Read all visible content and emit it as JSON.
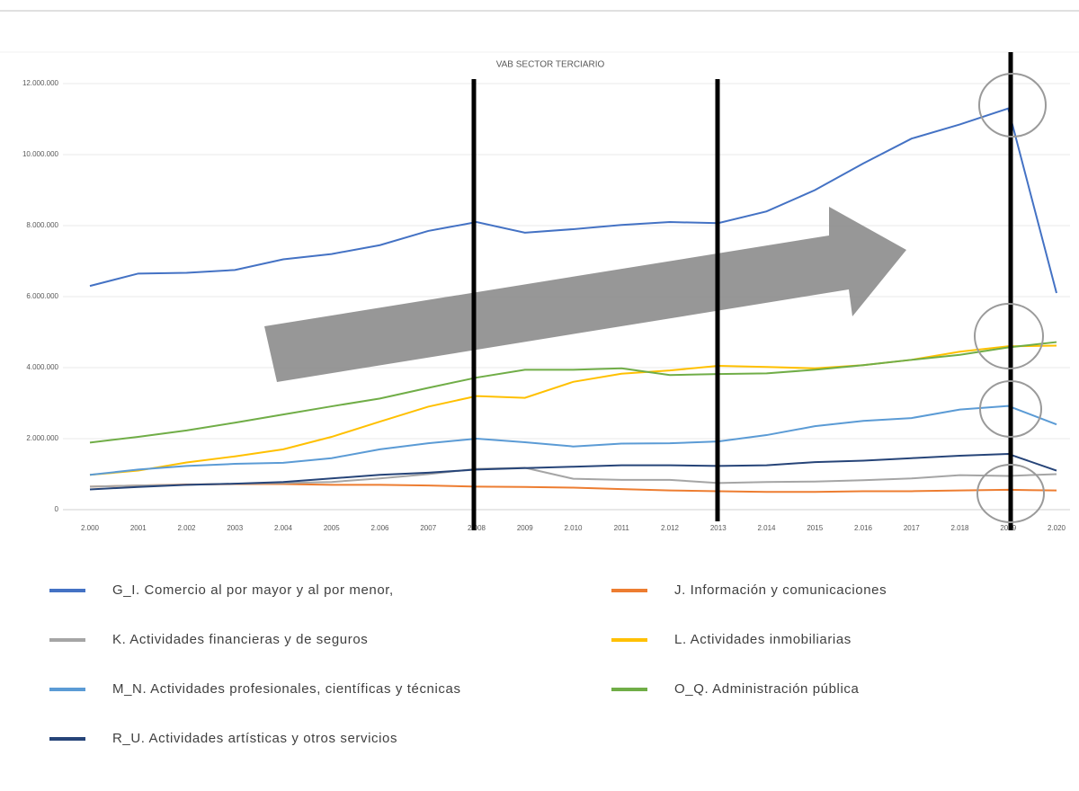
{
  "chart_data": {
    "type": "line",
    "title": "VAB SECTOR TERCIARIO",
    "categories": [
      "2.000",
      "2001",
      "2.002",
      "2003",
      "2.004",
      "2005",
      "2.006",
      "2007",
      "2.008",
      "2009",
      "2.010",
      "2011",
      "2.012",
      "2013",
      "2.014",
      "2015",
      "2.016",
      "2017",
      "2.018",
      "2019",
      "2.020"
    ],
    "ylim": [
      0,
      12000000
    ],
    "yticks": [
      0,
      {
        "value": 2000000,
        "label": "2.000.000"
      },
      {
        "value": 4000000,
        "label": "4.000.000"
      },
      {
        "value": 6000000,
        "label": "6.000.000"
      },
      {
        "value": 8000000,
        "label": "8.000.000"
      },
      {
        "value": 10000000,
        "label": "10.000.000"
      },
      {
        "value": 12000000,
        "label": "12.000.000"
      }
    ],
    "grid": true,
    "series": [
      {
        "name": "G_I. Comercio al por mayor y al por menor,",
        "color": "#4472c4",
        "values": [
          6300000,
          6650000,
          6670000,
          6750000,
          7050000,
          7200000,
          7450000,
          7850000,
          8100000,
          7800000,
          7900000,
          8020000,
          8100000,
          8070000,
          8400000,
          9000000,
          9750000,
          10450000,
          10850000,
          11300000,
          6100000
        ]
      },
      {
        "name": "J. Información y comunicaciones",
        "color": "#ed7d31",
        "values": [
          650000,
          680000,
          710000,
          720000,
          720000,
          700000,
          700000,
          680000,
          650000,
          640000,
          620000,
          580000,
          540000,
          520000,
          500000,
          500000,
          520000,
          520000,
          540000,
          560000,
          540000
        ]
      },
      {
        "name": "K. Actividades financieras y de seguros",
        "color": "#a5a5a5",
        "values": [
          650000,
          680000,
          700000,
          730000,
          750000,
          780000,
          880000,
          1000000,
          1150000,
          1180000,
          870000,
          840000,
          840000,
          750000,
          780000,
          790000,
          830000,
          880000,
          970000,
          950000,
          1000000
        ]
      },
      {
        "name": "L. Actividades inmobiliarias",
        "color": "#ffc000",
        "values": [
          980000,
          1100000,
          1330000,
          1500000,
          1700000,
          2050000,
          2480000,
          2900000,
          3200000,
          3150000,
          3600000,
          3830000,
          3920000,
          4050000,
          4020000,
          3980000,
          4070000,
          4220000,
          4450000,
          4600000,
          4620000
        ]
      },
      {
        "name": "M_N. Actividades profesionales, científicas y técnicas",
        "color": "#5b9bd5",
        "values": [
          980000,
          1130000,
          1230000,
          1290000,
          1320000,
          1450000,
          1700000,
          1870000,
          2000000,
          1900000,
          1780000,
          1860000,
          1870000,
          1920000,
          2100000,
          2350000,
          2500000,
          2580000,
          2820000,
          2920000,
          2400000
        ]
      },
      {
        "name": "O_Q. Administración pública",
        "color": "#70ad47",
        "values": [
          1890000,
          2050000,
          2230000,
          2450000,
          2680000,
          2910000,
          3130000,
          3430000,
          3720000,
          3940000,
          3940000,
          3980000,
          3790000,
          3820000,
          3840000,
          3940000,
          4070000,
          4220000,
          4360000,
          4570000,
          4720000
        ]
      },
      {
        "name": "R_U. Actividades artísticas y otros servicios",
        "color": "#264478",
        "values": [
          570000,
          640000,
          700000,
          730000,
          780000,
          880000,
          980000,
          1040000,
          1130000,
          1170000,
          1210000,
          1250000,
          1250000,
          1230000,
          1250000,
          1340000,
          1380000,
          1450000,
          1520000,
          1570000,
          1100000
        ]
      }
    ]
  }
}
